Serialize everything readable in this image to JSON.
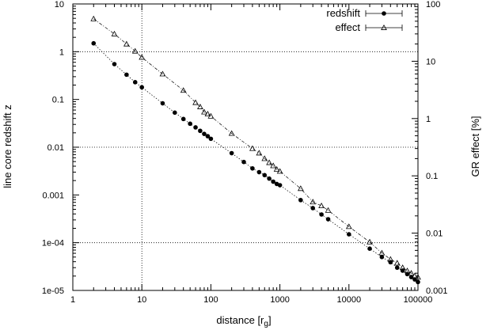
{
  "chart_data": {
    "type": "scatter",
    "title": "",
    "xlabel": "distance [r",
    "xlabel_sub": "g",
    "xlabel_close": "]",
    "ylabel": "line core redshift z",
    "y2label": "GR effect [%]",
    "xscale": "log",
    "yscale": "log",
    "y2scale": "log",
    "xlim": [
      1,
      100000
    ],
    "ylim": [
      1e-05,
      10
    ],
    "y2lim": [
      0.001,
      100
    ],
    "grid": "dotted",
    "legend_position": "top-right",
    "x_ticks": [
      {
        "v": 1,
        "label": "1"
      },
      {
        "v": 10,
        "label": "10"
      },
      {
        "v": 100,
        "label": "100"
      },
      {
        "v": 1000,
        "label": "1000"
      },
      {
        "v": 10000,
        "label": "10000"
      },
      {
        "v": 100000,
        "label": "100000"
      }
    ],
    "y_ticks": [
      {
        "v": 10,
        "label": "10"
      },
      {
        "v": 1,
        "label": "1"
      },
      {
        "v": 0.1,
        "label": "0.1"
      },
      {
        "v": 0.01,
        "label": "0.01"
      },
      {
        "v": 0.001,
        "label": "0.001"
      },
      {
        "v": 0.0001,
        "label": "1e-04"
      },
      {
        "v": 1e-05,
        "label": "1e-05"
      }
    ],
    "y2_ticks": [
      {
        "v": 100,
        "label": "100"
      },
      {
        "v": 10,
        "label": "10"
      },
      {
        "v": 1,
        "label": "1"
      },
      {
        "v": 0.1,
        "label": "0.1"
      },
      {
        "v": 0.01,
        "label": "0.01"
      },
      {
        "v": 0.001,
        "label": "0.001"
      }
    ],
    "vlines": [
      10
    ],
    "series": [
      {
        "name": "redshift",
        "marker": "circle",
        "axis": "y",
        "points": [
          {
            "x": 2,
            "y": 1.5
          },
          {
            "x": 4,
            "y": 0.55
          },
          {
            "x": 6,
            "y": 0.33
          },
          {
            "x": 8,
            "y": 0.23
          },
          {
            "x": 10,
            "y": 0.18
          },
          {
            "x": 20,
            "y": 0.083
          },
          {
            "x": 30,
            "y": 0.053
          },
          {
            "x": 40,
            "y": 0.039
          },
          {
            "x": 50,
            "y": 0.031
          },
          {
            "x": 60,
            "y": 0.026
          },
          {
            "x": 70,
            "y": 0.022
          },
          {
            "x": 80,
            "y": 0.019
          },
          {
            "x": 90,
            "y": 0.017
          },
          {
            "x": 100,
            "y": 0.015
          },
          {
            "x": 200,
            "y": 0.0075
          },
          {
            "x": 300,
            "y": 0.0049
          },
          {
            "x": 400,
            "y": 0.0036
          },
          {
            "x": 500,
            "y": 0.003
          },
          {
            "x": 600,
            "y": 0.0026
          },
          {
            "x": 700,
            "y": 0.0022
          },
          {
            "x": 800,
            "y": 0.0019
          },
          {
            "x": 900,
            "y": 0.0017
          },
          {
            "x": 1000,
            "y": 0.0016
          },
          {
            "x": 2000,
            "y": 0.00078
          },
          {
            "x": 3000,
            "y": 0.00053
          },
          {
            "x": 4000,
            "y": 0.00039
          },
          {
            "x": 5000,
            "y": 0.00031
          },
          {
            "x": 10000,
            "y": 0.00015
          },
          {
            "x": 20000,
            "y": 7.5e-05
          },
          {
            "x": 30000,
            "y": 5e-05
          },
          {
            "x": 40000,
            "y": 3.9e-05
          },
          {
            "x": 50000,
            "y": 3e-05
          },
          {
            "x": 60000,
            "y": 2.6e-05
          },
          {
            "x": 70000,
            "y": 2.2e-05
          },
          {
            "x": 80000,
            "y": 1.9e-05
          },
          {
            "x": 90000,
            "y": 1.7e-05
          },
          {
            "x": 100000,
            "y": 1.5e-05
          }
        ]
      },
      {
        "name": "effect",
        "marker": "triangle",
        "axis": "y2",
        "points": [
          {
            "x": 2,
            "y": 55
          },
          {
            "x": 4,
            "y": 30
          },
          {
            "x": 6,
            "y": 20
          },
          {
            "x": 8,
            "y": 15
          },
          {
            "x": 10,
            "y": 11.7
          },
          {
            "x": 20,
            "y": 6
          },
          {
            "x": 40,
            "y": 3.1
          },
          {
            "x": 60,
            "y": 1.9
          },
          {
            "x": 70,
            "y": 1.6
          },
          {
            "x": 80,
            "y": 1.3
          },
          {
            "x": 90,
            "y": 1.2
          },
          {
            "x": 100,
            "y": 1.1
          },
          {
            "x": 200,
            "y": 0.55
          },
          {
            "x": 400,
            "y": 0.3
          },
          {
            "x": 500,
            "y": 0.25
          },
          {
            "x": 600,
            "y": 0.2
          },
          {
            "x": 700,
            "y": 0.17
          },
          {
            "x": 800,
            "y": 0.15
          },
          {
            "x": 900,
            "y": 0.13
          },
          {
            "x": 1000,
            "y": 0.12
          },
          {
            "x": 2000,
            "y": 0.06
          },
          {
            "x": 3000,
            "y": 0.035
          },
          {
            "x": 4000,
            "y": 0.03
          },
          {
            "x": 5000,
            "y": 0.025
          },
          {
            "x": 10000,
            "y": 0.013
          },
          {
            "x": 20000,
            "y": 0.007
          },
          {
            "x": 30000,
            "y": 0.0045
          },
          {
            "x": 40000,
            "y": 0.0035
          },
          {
            "x": 50000,
            "y": 0.003
          },
          {
            "x": 60000,
            "y": 0.0025
          },
          {
            "x": 70000,
            "y": 0.0022
          },
          {
            "x": 80000,
            "y": 0.002
          },
          {
            "x": 90000,
            "y": 0.0018
          },
          {
            "x": 100000,
            "y": 0.0017
          }
        ]
      }
    ]
  }
}
